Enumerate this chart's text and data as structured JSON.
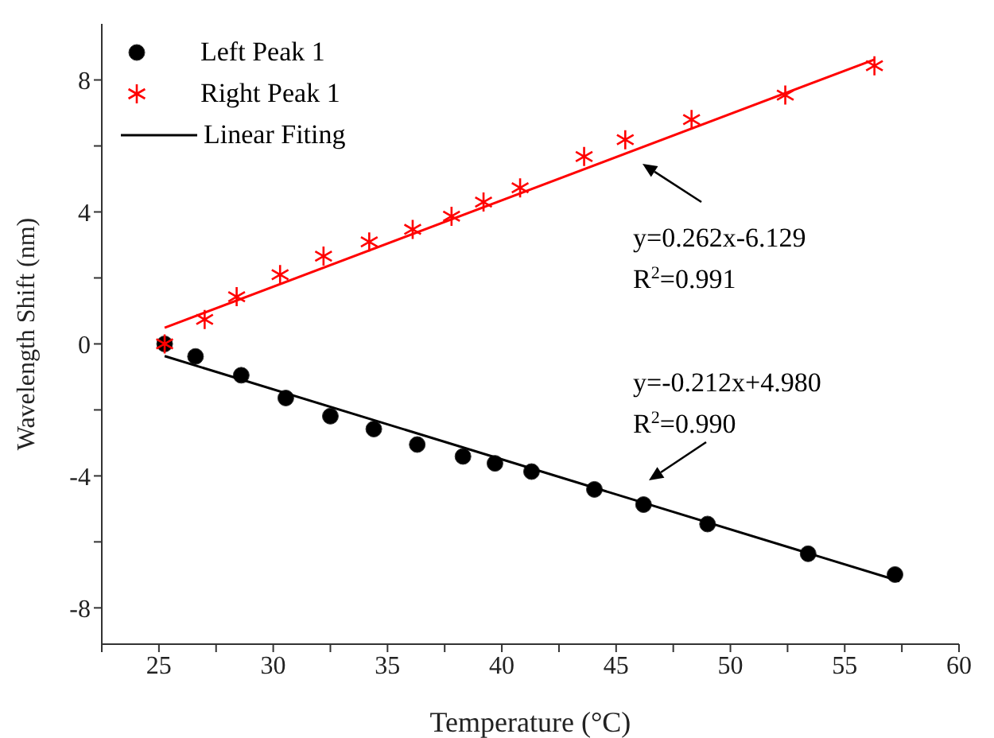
{
  "chart_data": {
    "type": "scatter",
    "xlabel": "Temperature (°C)",
    "ylabel": "Wavelength Shift (nm)",
    "xlim": [
      22.5,
      60
    ],
    "ylim": [
      -9.1,
      9.7
    ],
    "xticks": [
      {
        "value": 22.5,
        "label": null
      },
      25,
      {
        "value": 27.5,
        "label": null
      },
      30,
      {
        "value": 32.5,
        "label": null
      },
      35,
      {
        "value": 37.5,
        "label": null
      },
      40,
      {
        "value": 42.5,
        "label": null
      },
      45,
      {
        "value": 47.5,
        "label": null
      },
      50,
      {
        "value": 52.5,
        "label": null
      },
      55,
      {
        "value": 57.5,
        "label": null
      },
      60
    ],
    "yticks": [
      -8,
      {
        "value": -6,
        "label": null
      },
      -4,
      {
        "value": -2,
        "label": null
      },
      0,
      {
        "value": 2,
        "label": null
      },
      4,
      {
        "value": 6,
        "label": null
      },
      8
    ],
    "grid": false,
    "legend": "top left",
    "series": [
      {
        "name": "Left Peak 1",
        "color": "#000000",
        "marker": "circle",
        "x": [
          25.25,
          26.6,
          28.6,
          30.55,
          32.5,
          34.4,
          36.3,
          38.3,
          39.7,
          41.3,
          44.05,
          46.2,
          49.0,
          53.4,
          57.2
        ],
        "values": [
          0,
          -0.38,
          -0.95,
          -1.64,
          -2.19,
          -2.58,
          -3.05,
          -3.41,
          -3.62,
          -3.87,
          -4.41,
          -4.87,
          -5.46,
          -6.36,
          -6.99
        ]
      },
      {
        "name": "Right Peak 1",
        "color": "#ff0000",
        "marker": "cross",
        "x": [
          25.25,
          27.0,
          28.4,
          30.3,
          32.2,
          34.2,
          36.1,
          37.8,
          39.2,
          40.8,
          43.6,
          45.4,
          48.3,
          52.4,
          56.3
        ],
        "values": [
          0,
          0.74,
          1.43,
          2.1,
          2.66,
          3.09,
          3.47,
          3.87,
          4.3,
          4.73,
          5.68,
          6.19,
          6.8,
          7.54,
          8.43
        ]
      },
      {
        "name": "Linear Fiting",
        "type": "line",
        "color": "#000000",
        "marker": "none",
        "x": [
          25.25,
          57.4
        ],
        "values": [
          -0.37,
          -7.19
        ]
      },
      {
        "type": "line",
        "color": "#ff0000",
        "marker": "none",
        "x": [
          25.25,
          56.3
        ],
        "values": [
          0.49,
          8.62
        ]
      }
    ],
    "annotations": [
      "y=0.262x-6.129\nR$^{2}$=0.991",
      "y=-0.212x+4.980\nR$^{2}$=0.990"
    ]
  }
}
